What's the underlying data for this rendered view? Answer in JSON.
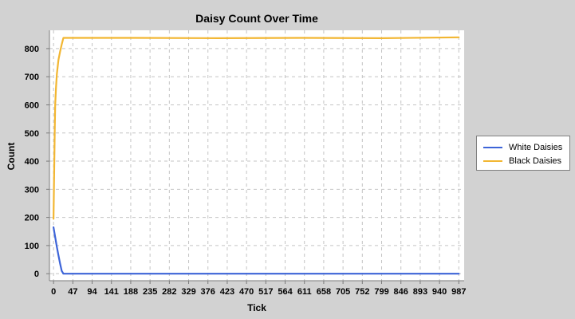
{
  "chart_data": {
    "type": "line",
    "title": "Daisy Count Over Time",
    "xlabel": "Tick",
    "ylabel": "Count",
    "xlim": [
      -10,
      1000
    ],
    "ylim": [
      -25,
      865
    ],
    "x_ticks": [
      0,
      47,
      94,
      141,
      188,
      235,
      282,
      329,
      376,
      423,
      470,
      517,
      564,
      611,
      658,
      705,
      752,
      799,
      846,
      893,
      940,
      987
    ],
    "y_ticks": [
      0,
      100,
      200,
      300,
      400,
      500,
      600,
      700,
      800
    ],
    "grid": true,
    "legend_position": "right",
    "series": [
      {
        "name": "White Daisies",
        "color": "#3d64d8",
        "points": [
          [
            0,
            165
          ],
          [
            4,
            130
          ],
          [
            8,
            95
          ],
          [
            12,
            65
          ],
          [
            16,
            35
          ],
          [
            20,
            10
          ],
          [
            24,
            0
          ],
          [
            987,
            0
          ]
        ]
      },
      {
        "name": "Black Daisies",
        "color": "#f2b632",
        "points": [
          [
            0,
            195
          ],
          [
            1,
            320
          ],
          [
            2,
            420
          ],
          [
            3,
            520
          ],
          [
            4,
            600
          ],
          [
            6,
            660
          ],
          [
            8,
            710
          ],
          [
            12,
            760
          ],
          [
            16,
            790
          ],
          [
            20,
            815
          ],
          [
            24,
            838
          ],
          [
            200,
            838
          ],
          [
            400,
            837
          ],
          [
            600,
            838
          ],
          [
            800,
            837
          ],
          [
            987,
            840
          ]
        ]
      }
    ]
  }
}
